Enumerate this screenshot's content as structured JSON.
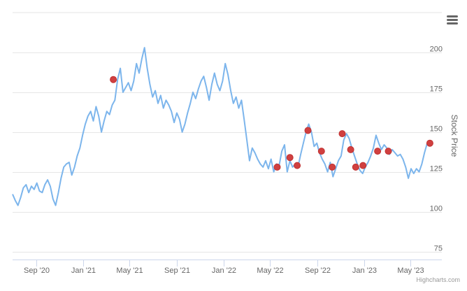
{
  "chart_data": {
    "type": "line",
    "title": "",
    "xlabel": "",
    "ylabel": "Stock Price",
    "y_axis_side": "right",
    "ylim": [
      70,
      225
    ],
    "yticks": [
      75,
      100,
      125,
      150,
      175,
      200
    ],
    "xlim": [
      "2020-07-01",
      "2023-07-22"
    ],
    "xticks": [
      {
        "date": "2020-09-01",
        "label": "Sep '20"
      },
      {
        "date": "2021-01-01",
        "label": "Jan '21"
      },
      {
        "date": "2021-05-01",
        "label": "May '21"
      },
      {
        "date": "2021-09-01",
        "label": "Sep '21"
      },
      {
        "date": "2022-01-01",
        "label": "Jan '22"
      },
      {
        "date": "2022-05-01",
        "label": "May '22"
      },
      {
        "date": "2022-09-01",
        "label": "Sep '22"
      },
      {
        "date": "2023-01-01",
        "label": "Jan '23"
      },
      {
        "date": "2023-05-01",
        "label": "May '23"
      }
    ],
    "grid": true,
    "series": [
      {
        "color": "#7cb5ec",
        "points": [
          [
            "2020-07-01",
            111
          ],
          [
            "2020-07-08",
            107
          ],
          [
            "2020-07-15",
            104
          ],
          [
            "2020-07-22",
            109
          ],
          [
            "2020-07-29",
            115
          ],
          [
            "2020-08-05",
            117
          ],
          [
            "2020-08-12",
            112
          ],
          [
            "2020-08-19",
            116
          ],
          [
            "2020-08-26",
            114
          ],
          [
            "2020-09-02",
            118
          ],
          [
            "2020-09-09",
            113
          ],
          [
            "2020-09-16",
            112
          ],
          [
            "2020-09-23",
            117
          ],
          [
            "2020-09-30",
            120
          ],
          [
            "2020-10-07",
            116
          ],
          [
            "2020-10-14",
            108
          ],
          [
            "2020-10-21",
            104
          ],
          [
            "2020-10-28",
            112
          ],
          [
            "2020-11-04",
            121
          ],
          [
            "2020-11-11",
            128
          ],
          [
            "2020-11-18",
            130
          ],
          [
            "2020-11-25",
            131
          ],
          [
            "2020-12-02",
            123
          ],
          [
            "2020-12-09",
            128
          ],
          [
            "2020-12-16",
            135
          ],
          [
            "2020-12-23",
            140
          ],
          [
            "2020-12-30",
            148
          ],
          [
            "2021-01-06",
            155
          ],
          [
            "2021-01-13",
            160
          ],
          [
            "2021-01-20",
            163
          ],
          [
            "2021-01-27",
            157
          ],
          [
            "2021-02-03",
            166
          ],
          [
            "2021-02-10",
            160
          ],
          [
            "2021-02-17",
            150
          ],
          [
            "2021-02-24",
            157
          ],
          [
            "2021-03-03",
            163
          ],
          [
            "2021-03-10",
            161
          ],
          [
            "2021-03-17",
            167
          ],
          [
            "2021-03-24",
            170
          ],
          [
            "2021-03-31",
            183
          ],
          [
            "2021-04-07",
            190
          ],
          [
            "2021-04-14",
            175
          ],
          [
            "2021-04-21",
            178
          ],
          [
            "2021-04-28",
            181
          ],
          [
            "2021-05-05",
            176
          ],
          [
            "2021-05-12",
            182
          ],
          [
            "2021-05-19",
            193
          ],
          [
            "2021-05-26",
            187
          ],
          [
            "2021-06-02",
            196
          ],
          [
            "2021-06-09",
            203
          ],
          [
            "2021-06-16",
            190
          ],
          [
            "2021-06-23",
            180
          ],
          [
            "2021-06-30",
            172
          ],
          [
            "2021-07-07",
            176
          ],
          [
            "2021-07-14",
            168
          ],
          [
            "2021-07-21",
            173
          ],
          [
            "2021-07-28",
            165
          ],
          [
            "2021-08-04",
            170
          ],
          [
            "2021-08-11",
            167
          ],
          [
            "2021-08-18",
            163
          ],
          [
            "2021-08-25",
            156
          ],
          [
            "2021-09-01",
            162
          ],
          [
            "2021-09-08",
            158
          ],
          [
            "2021-09-15",
            150
          ],
          [
            "2021-09-22",
            155
          ],
          [
            "2021-09-29",
            162
          ],
          [
            "2021-10-06",
            168
          ],
          [
            "2021-10-13",
            175
          ],
          [
            "2021-10-20",
            171
          ],
          [
            "2021-10-27",
            177
          ],
          [
            "2021-11-03",
            182
          ],
          [
            "2021-11-10",
            185
          ],
          [
            "2021-11-17",
            178
          ],
          [
            "2021-11-24",
            170
          ],
          [
            "2021-12-01",
            180
          ],
          [
            "2021-12-08",
            187
          ],
          [
            "2021-12-15",
            180
          ],
          [
            "2021-12-22",
            176
          ],
          [
            "2021-12-29",
            182
          ],
          [
            "2022-01-05",
            193
          ],
          [
            "2022-01-12",
            186
          ],
          [
            "2022-01-19",
            176
          ],
          [
            "2022-01-26",
            168
          ],
          [
            "2022-02-02",
            172
          ],
          [
            "2022-02-09",
            165
          ],
          [
            "2022-02-16",
            170
          ],
          [
            "2022-02-23",
            158
          ],
          [
            "2022-03-02",
            145
          ],
          [
            "2022-03-09",
            132
          ],
          [
            "2022-03-16",
            140
          ],
          [
            "2022-03-23",
            137
          ],
          [
            "2022-03-30",
            133
          ],
          [
            "2022-04-06",
            130
          ],
          [
            "2022-04-13",
            128
          ],
          [
            "2022-04-20",
            132
          ],
          [
            "2022-04-27",
            127
          ],
          [
            "2022-05-04",
            133
          ],
          [
            "2022-05-11",
            125
          ],
          [
            "2022-05-18",
            130
          ],
          [
            "2022-05-25",
            129
          ],
          [
            "2022-06-01",
            138
          ],
          [
            "2022-06-08",
            142
          ],
          [
            "2022-06-15",
            125
          ],
          [
            "2022-06-22",
            132
          ],
          [
            "2022-06-29",
            128
          ],
          [
            "2022-07-06",
            130
          ],
          [
            "2022-07-13",
            128
          ],
          [
            "2022-07-20",
            136
          ],
          [
            "2022-07-27",
            143
          ],
          [
            "2022-08-03",
            150
          ],
          [
            "2022-08-10",
            155
          ],
          [
            "2022-08-17",
            150
          ],
          [
            "2022-08-24",
            141
          ],
          [
            "2022-08-31",
            143
          ],
          [
            "2022-09-07",
            137
          ],
          [
            "2022-09-14",
            133
          ],
          [
            "2022-09-21",
            130
          ],
          [
            "2022-09-28",
            125
          ],
          [
            "2022-10-05",
            131
          ],
          [
            "2022-10-12",
            122
          ],
          [
            "2022-10-19",
            127
          ],
          [
            "2022-10-26",
            132
          ],
          [
            "2022-11-02",
            135
          ],
          [
            "2022-11-09",
            145
          ],
          [
            "2022-11-16",
            149
          ],
          [
            "2022-11-23",
            146
          ],
          [
            "2022-11-30",
            140
          ],
          [
            "2022-12-07",
            135
          ],
          [
            "2022-12-14",
            130
          ],
          [
            "2022-12-21",
            126
          ],
          [
            "2022-12-28",
            124
          ],
          [
            "2023-01-04",
            128
          ],
          [
            "2023-01-11",
            131
          ],
          [
            "2023-01-18",
            135
          ],
          [
            "2023-01-25",
            140
          ],
          [
            "2023-02-01",
            148
          ],
          [
            "2023-02-08",
            143
          ],
          [
            "2023-02-15",
            139
          ],
          [
            "2023-02-22",
            142
          ],
          [
            "2023-03-01",
            140
          ],
          [
            "2023-03-08",
            136
          ],
          [
            "2023-03-15",
            139
          ],
          [
            "2023-03-22",
            137
          ],
          [
            "2023-03-29",
            135
          ],
          [
            "2023-04-05",
            136
          ],
          [
            "2023-04-12",
            133
          ],
          [
            "2023-04-19",
            128
          ],
          [
            "2023-04-26",
            121
          ],
          [
            "2023-05-03",
            127
          ],
          [
            "2023-05-10",
            124
          ],
          [
            "2023-05-17",
            127
          ],
          [
            "2023-05-24",
            125
          ],
          [
            "2023-05-31",
            130
          ],
          [
            "2023-06-07",
            137
          ],
          [
            "2023-06-14",
            143
          ],
          [
            "2023-06-21",
            144
          ]
        ]
      }
    ],
    "flags": {
      "color": "#d04040",
      "points": [
        [
          "2021-03-20",
          183
        ],
        [
          "2022-05-20",
          128
        ],
        [
          "2022-06-22",
          134
        ],
        [
          "2022-07-11",
          129
        ],
        [
          "2022-08-08",
          151
        ],
        [
          "2022-09-12",
          138
        ],
        [
          "2022-10-10",
          128
        ],
        [
          "2022-11-05",
          149
        ],
        [
          "2022-11-27",
          139
        ],
        [
          "2022-12-10",
          128
        ],
        [
          "2022-12-29",
          129
        ],
        [
          "2023-02-05",
          138
        ],
        [
          "2023-03-05",
          138
        ],
        [
          "2023-06-21",
          143
        ]
      ]
    }
  },
  "credits": "Highcharts.com",
  "menu_icon": "hamburger-menu-icon"
}
